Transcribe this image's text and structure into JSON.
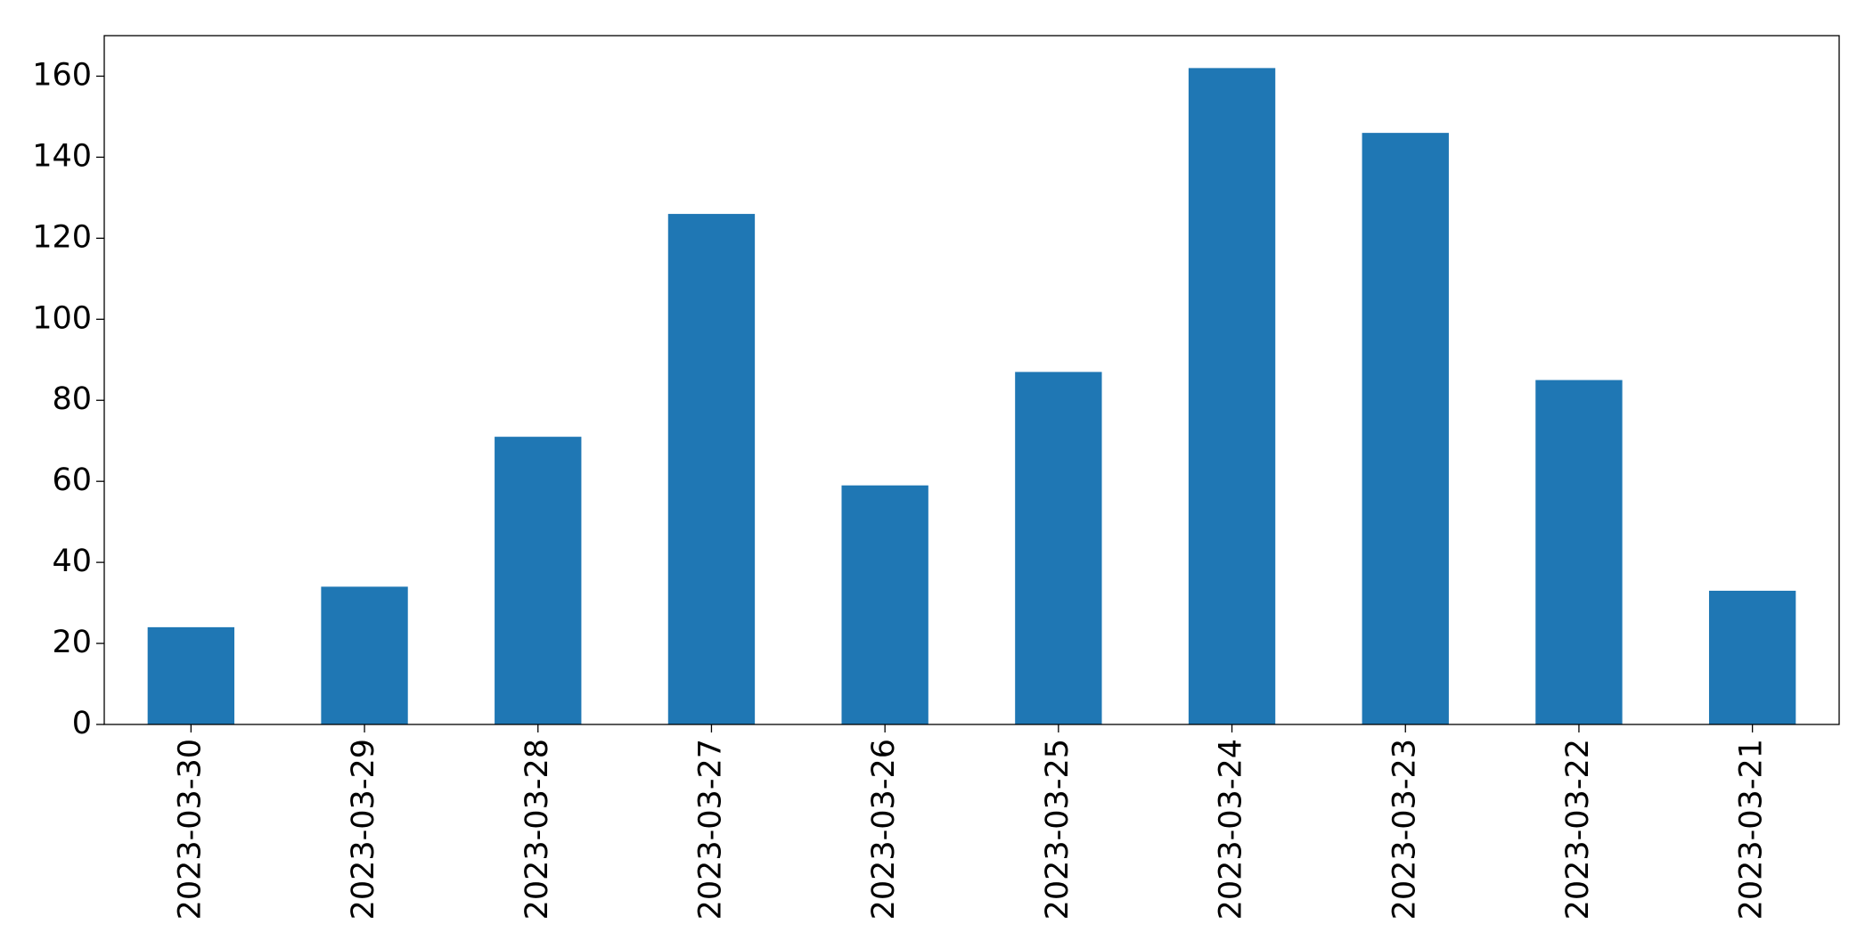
{
  "chart_data": {
    "type": "bar",
    "categories": [
      "2023-03-30",
      "2023-03-29",
      "2023-03-28",
      "2023-03-27",
      "2023-03-26",
      "2023-03-25",
      "2023-03-24",
      "2023-03-23",
      "2023-03-22",
      "2023-03-21"
    ],
    "values": [
      24,
      34,
      71,
      126,
      59,
      87,
      162,
      146,
      85,
      33
    ],
    "color": "#1f77b4",
    "ylim": [
      0,
      170
    ],
    "yticks": [
      0,
      20,
      40,
      60,
      80,
      100,
      120,
      140,
      160
    ],
    "grid": false
  }
}
